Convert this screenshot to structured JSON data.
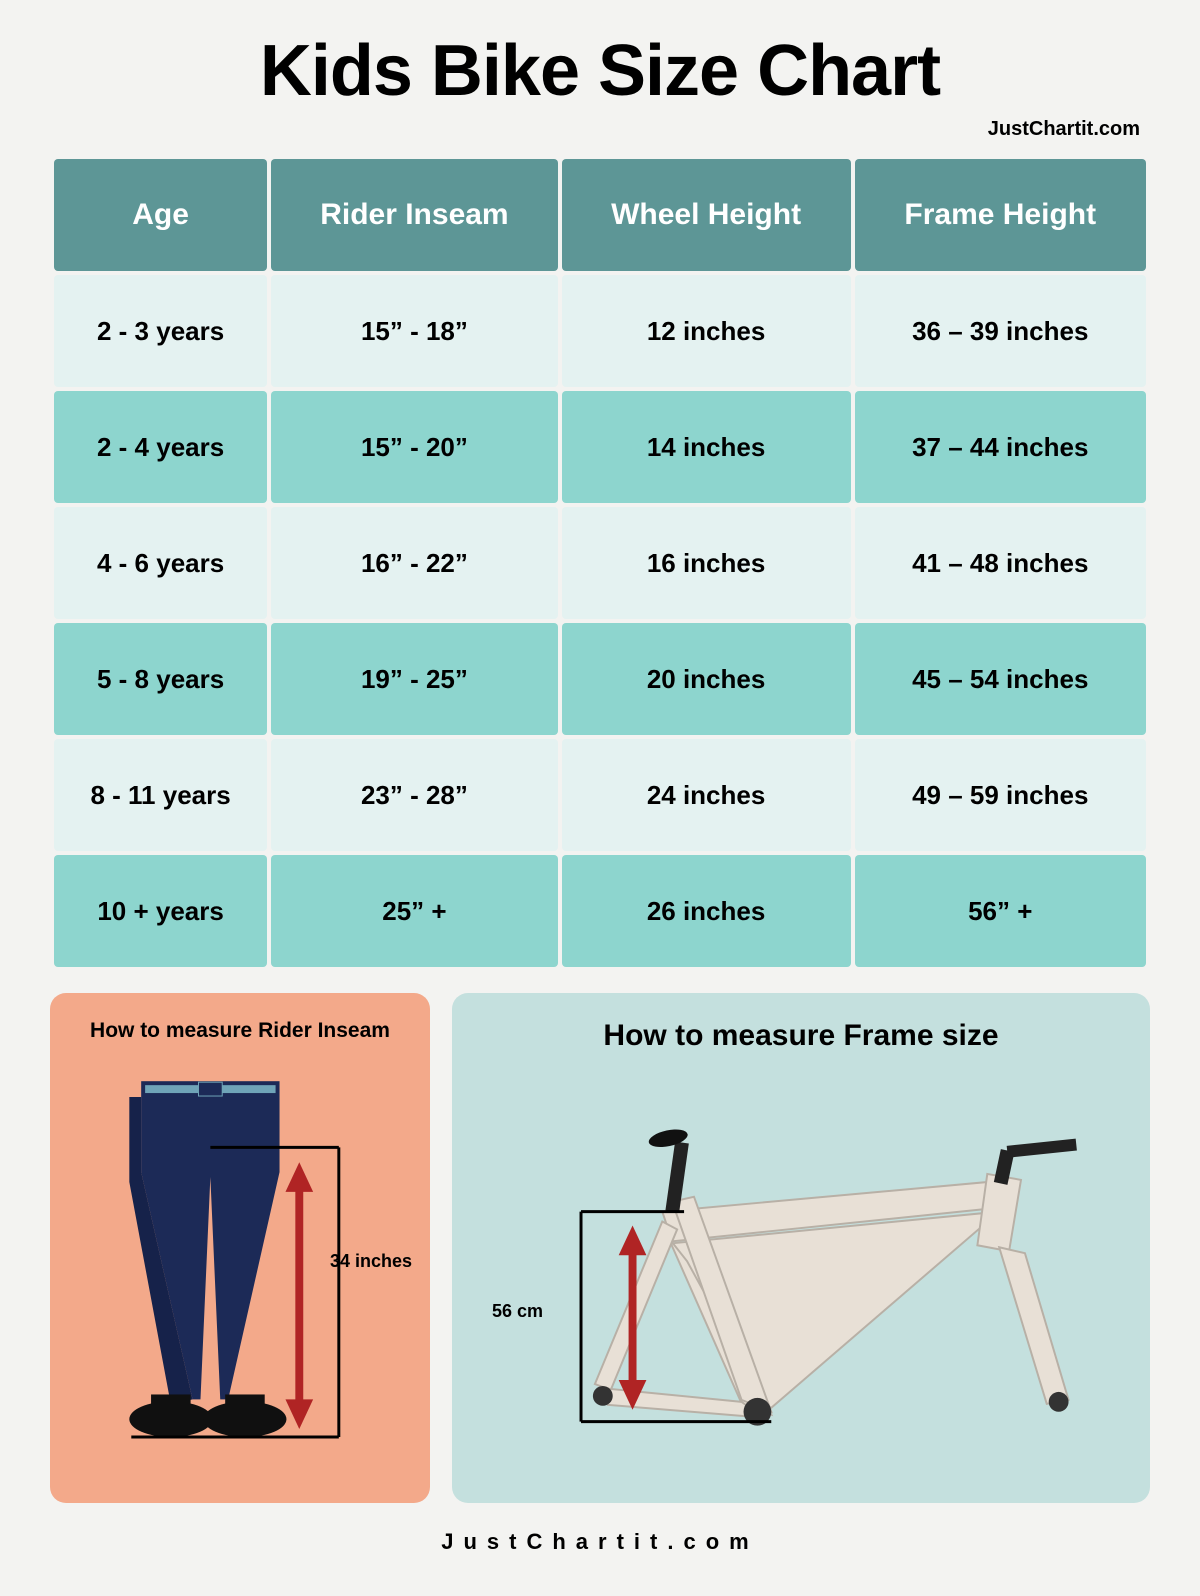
{
  "title": "Kids Bike Size Chart",
  "attribution_top": "JustChartit.com",
  "footer": "JustChartit.com",
  "table": {
    "header_bg": "#5d9696",
    "header_text_color": "#ffffff",
    "row_bg_light": "#e4f2f1",
    "row_bg_dark": "#8dd5ce",
    "columns": [
      "Age",
      "Rider Inseam",
      "Wheel Height",
      "Frame Height"
    ],
    "rows": [
      [
        "2 - 3 years",
        "15” - 18”",
        "12 inches",
        "36 – 39 inches"
      ],
      [
        "2 - 4 years",
        "15” - 20”",
        "14 inches",
        "37 – 44 inches"
      ],
      [
        "4 - 6 years",
        "16” - 22”",
        "16 inches",
        "41 – 48 inches"
      ],
      [
        "5 - 8 years",
        "19” - 25”",
        "20 inches",
        "45 – 54 inches"
      ],
      [
        "8 - 11 years",
        "23” - 28”",
        "24 inches",
        "49 – 59 inches"
      ],
      [
        "10 + years",
        "25” +",
        "26 inches",
        "56” +"
      ]
    ]
  },
  "panels": {
    "left": {
      "bg": "#f3a98a",
      "title": "How to measure Rider Inseam",
      "measurement_label": "34 inches",
      "pants_color": "#1c2a57",
      "belt_color": "#6fa4b8",
      "shoe_color": "#101010",
      "arrow_color": "#b02424",
      "bracket_color": "#000000"
    },
    "right": {
      "bg": "#c4e0de",
      "title": "How to measure Frame size",
      "measurement_label": "56 cm",
      "frame_color": "#e8e0d6",
      "frame_shadow": "#b8b0a6",
      "arrow_color": "#b02424",
      "bracket_color": "#000000"
    }
  }
}
